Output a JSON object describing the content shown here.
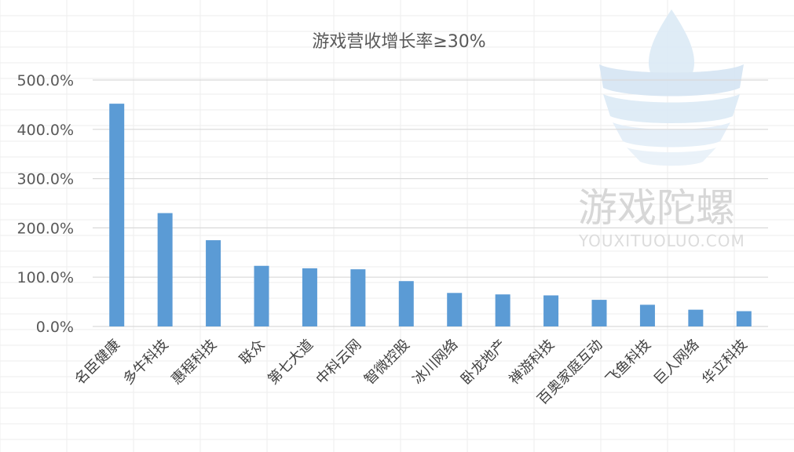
{
  "chart_data": {
    "type": "bar",
    "title": "游戏营收增长率≥30%",
    "xlabel": "",
    "ylabel": "",
    "ylim": [
      0,
      500
    ],
    "yticks": [
      0,
      100,
      200,
      300,
      400,
      500
    ],
    "ytick_labels": [
      "0.0%",
      "100.0%",
      "200.0%",
      "300.0%",
      "400.0%",
      "500.0%"
    ],
    "categories": [
      "名臣健康",
      "多牛科技",
      "惠程科技",
      "联众",
      "第七大道",
      "中科云网",
      "智微控股",
      "冰川网络",
      "卧龙地产",
      "禅游科技",
      "百奥家庭互动",
      "飞鱼科技",
      "巨人网络",
      "华立科技"
    ],
    "values": [
      452,
      230,
      175,
      123,
      118,
      116,
      92,
      68,
      65,
      63,
      54,
      44,
      34,
      31
    ],
    "unit": "%",
    "grid": true,
    "legend": "none",
    "bar_color": "#5b9bd5"
  },
  "watermark": {
    "text": "游戏陀螺",
    "subtext": "YOUXITUOLUO.COM",
    "icon": "spinning-top-icon"
  }
}
